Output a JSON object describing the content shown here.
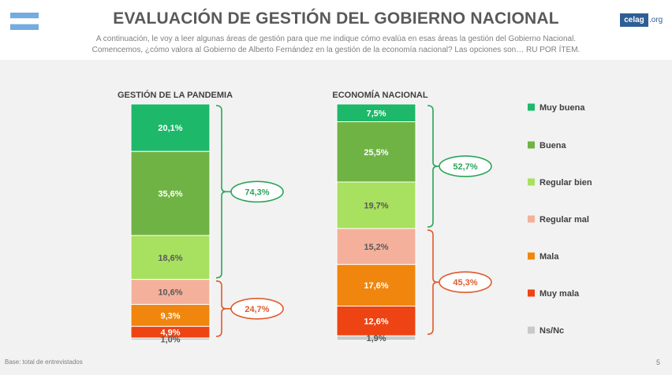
{
  "header": {
    "title": "EVALUACIÓN DE GESTIÓN DEL GOBIERNO NACIONAL",
    "subtitle_line1": "A continuación, le voy a leer algunas áreas de gestión para que me indique cómo evalúa en esas áreas la gestión del Gobierno Nacional.",
    "subtitle_line2": "Comencemos, ¿cómo valora al Gobierno de Alberto Fernández en la gestión de la economía nacional? Las opciones son… RU POR ÍTEM.",
    "logo_text": "celag",
    "logo_suffix": ".org"
  },
  "footer": {
    "base_note": "Base: total de entrevistados",
    "page_number": "5"
  },
  "colors": {
    "flag_blue": "#74acdf",
    "brace_positive": "#2aa55a",
    "brace_negative": "#e05a2b"
  },
  "chart_data": {
    "type": "bar",
    "stacked": true,
    "normalized_percent": true,
    "categories": [
      "GESTIÓN DE LA PANDEMIA",
      "ECONOMÍA NACIONAL"
    ],
    "series": [
      {
        "name": "Muy buena",
        "color": "#1db86a",
        "values": [
          20.1,
          7.5
        ],
        "labels": [
          "20,1%",
          "7,5%"
        ]
      },
      {
        "name": "Buena",
        "color": "#70b345",
        "values": [
          35.6,
          25.5
        ],
        "labels": [
          "35,6%",
          "25,5%"
        ]
      },
      {
        "name": "Regular bien",
        "color": "#a8e05f",
        "values": [
          18.6,
          19.7
        ],
        "labels": [
          "18,6%",
          "19,7%"
        ]
      },
      {
        "name": "Regular mal",
        "color": "#f5b09c",
        "values": [
          10.6,
          15.2
        ],
        "labels": [
          "10,6%",
          "15,2%"
        ]
      },
      {
        "name": "Mala",
        "color": "#f0860d",
        "values": [
          9.3,
          17.6
        ],
        "labels": [
          "9,3%",
          "17,6%"
        ]
      },
      {
        "name": "Muy mala",
        "color": "#ee4312",
        "values": [
          4.9,
          12.6
        ],
        "labels": [
          "4,9%",
          "12,6%"
        ]
      },
      {
        "name": "Ns/Nc",
        "color": "#c9c9c9",
        "values": [
          1.0,
          1.9
        ],
        "labels": [
          "1,0%",
          "1,9%"
        ]
      }
    ],
    "groups": [
      {
        "positive": 74.3,
        "positive_label": "74,3%",
        "negative": 24.7,
        "negative_label": "24,7%"
      },
      {
        "positive": 52.7,
        "positive_label": "52,7%",
        "negative": 45.3,
        "negative_label": "45,3%"
      }
    ],
    "legend_position": "right",
    "grid": false
  }
}
